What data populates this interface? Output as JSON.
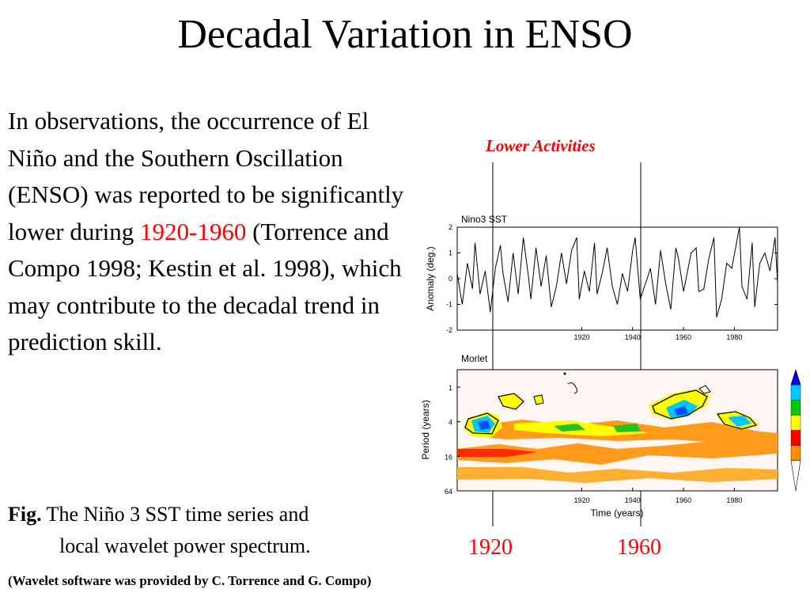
{
  "slide": {
    "title": "Decadal Variation in ENSO",
    "body_before": "In observations, the occurrence of El Niño and the Southern Oscillation (ENSO) was reported to be significantly lower during ",
    "body_highlight": "1920-1960",
    "body_after": " (Torrence and Compo 1998; Kestin et al. 1998), which may contribute to the decadal trend in prediction skill.",
    "annotation": "Lower Activities",
    "fig_label": "Fig.",
    "fig_caption_1": "The Niño 3 SST time series and",
    "fig_caption_2": "local wavelet power spectrum.",
    "credit": "(Wavelet software was provided by C. Torrence and G. Compo)",
    "marker_years": [
      "1920",
      "1960"
    ],
    "colors": {
      "highlight": "#ff0000",
      "text": "#000000"
    }
  },
  "chart_data": [
    {
      "type": "line",
      "title": "Nino3 SST",
      "ylabel": "Anomaly (deg.)",
      "xticks": [
        "1920",
        "1940",
        "1960",
        "1980"
      ],
      "yticks": [
        "2",
        "1",
        "0",
        "-1",
        "-2"
      ],
      "xlim": [
        1871,
        1997
      ],
      "ylim": [
        -2,
        2
      ],
      "x": [
        1871,
        1873,
        1875,
        1877,
        1878,
        1880,
        1882,
        1884,
        1886,
        1888,
        1889,
        1891,
        1893,
        1895,
        1897,
        1899,
        1900,
        1902,
        1904,
        1906,
        1908,
        1910,
        1912,
        1914,
        1916,
        1918,
        1919,
        1921,
        1923,
        1925,
        1926,
        1928,
        1930,
        1932,
        1934,
        1936,
        1938,
        1940,
        1941,
        1943,
        1945,
        1947,
        1949,
        1951,
        1953,
        1955,
        1957,
        1958,
        1960,
        1963,
        1965,
        1966,
        1968,
        1970,
        1972,
        1973,
        1975,
        1977,
        1979,
        1982,
        1983,
        1985,
        1987,
        1988,
        1990,
        1992,
        1994,
        1996,
        1997
      ],
      "values": [
        0.2,
        -1.0,
        0.6,
        -0.4,
        1.4,
        -0.6,
        0.3,
        -1.3,
        0.4,
        1.3,
        0.2,
        -0.9,
        1.0,
        -0.6,
        1.6,
        0.1,
        -0.8,
        1.2,
        -0.3,
        0.9,
        -1.1,
        -0.3,
        1.0,
        -0.2,
        1.1,
        1.6,
        -0.8,
        0.3,
        -0.5,
        1.4,
        -0.6,
        0.2,
        1.2,
        -0.3,
        -1.0,
        0.2,
        -0.5,
        1.1,
        1.6,
        -0.8,
        -0.2,
        0.4,
        -1.0,
        1.1,
        -0.2,
        -1.2,
        1.2,
        0.8,
        -0.5,
        1.0,
        1.2,
        -0.5,
        -0.4,
        0.8,
        1.6,
        -1.5,
        -0.8,
        0.6,
        0.4,
        2.0,
        -0.3,
        -0.8,
        1.4,
        -1.1,
        0.6,
        1.0,
        0.3,
        1.6,
        -0.2
      ]
    },
    {
      "type": "heatmap",
      "title": "Morlet",
      "xlabel": "Time (years)",
      "ylabel": "Period (years)",
      "xticks": [
        "1920",
        "1940",
        "1960",
        "1980"
      ],
      "yticks": [
        "1",
        "4",
        "16",
        "64"
      ],
      "xlim": [
        1871,
        1997
      ],
      "colorbar_colors": [
        "#ffffff",
        "#ff8c00",
        "#ff0000",
        "#ffff00",
        "#00c800",
        "#00c8ff",
        "#0000ff"
      ],
      "high_power_regions": [
        {
          "x": [
            1900,
            1916
          ],
          "period": [
            3,
            6
          ],
          "level": "high"
        },
        {
          "x": [
            1957,
            1980
          ],
          "period": [
            2,
            5
          ],
          "level": "high"
        },
        {
          "x": [
            1963,
            1973
          ],
          "period": [
            1.4,
            3
          ],
          "level": "high"
        },
        {
          "x": [
            1920,
            1938
          ],
          "period": [
            10,
            40
          ],
          "level": "moderate"
        },
        {
          "x": [
            1965,
            1997
          ],
          "period": [
            10,
            40
          ],
          "level": "moderate"
        }
      ]
    }
  ]
}
